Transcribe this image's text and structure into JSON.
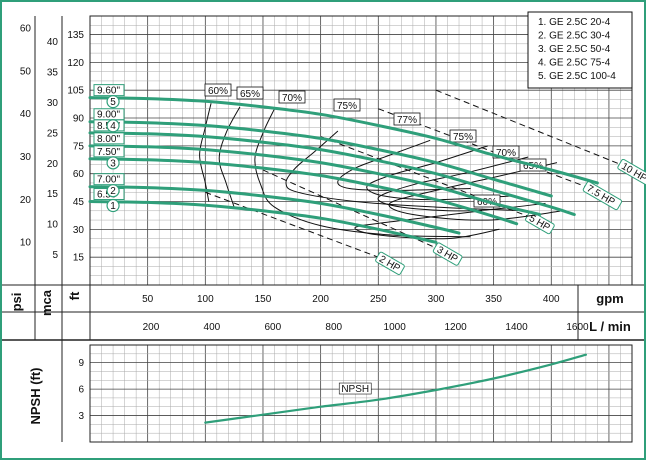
{
  "chart_data": [
    {
      "type": "line",
      "title": "",
      "legend": {
        "placement": "top-right",
        "items": [
          "1. GE 2.5C 20-4",
          "2. GE 2.5C 30-4",
          "3. GE 2.5C 50-4",
          "4. GE 2.5C 75-4",
          "5. GE 2.5C 100-4"
        ]
      },
      "axes": {
        "x_top": {
          "label": "gpm",
          "ticks": [
            50,
            100,
            150,
            200,
            250,
            300,
            350,
            400
          ],
          "range": [
            0,
            470
          ]
        },
        "x_bottom": {
          "label": "L / min",
          "ticks": [
            200,
            400,
            600,
            800,
            1000,
            1200,
            1400,
            1600
          ],
          "range": [
            0,
            1779
          ]
        },
        "y_ft": {
          "label": "ft",
          "ticks": [
            15,
            30,
            45,
            60,
            75,
            90,
            105,
            120,
            135
          ],
          "range": [
            0,
            145
          ]
        },
        "y_mca": {
          "label": "mca",
          "ticks": [
            5,
            10,
            15,
            20,
            25,
            30,
            35,
            40
          ],
          "range": [
            0,
            44.2
          ]
        },
        "y_psi": {
          "label": "psi",
          "ticks": [
            10,
            20,
            30,
            40,
            50,
            60
          ],
          "range": [
            0,
            62.8
          ]
        }
      },
      "grid": true,
      "series": [
        {
          "name": "1",
          "diameter": "6.50\"",
          "x": [
            0,
            50,
            100,
            150,
            200,
            250,
            300
          ],
          "y": [
            45,
            44.5,
            43,
            40,
            36,
            30,
            23
          ]
        },
        {
          "name": "2",
          "diameter": "7.00\"",
          "x": [
            0,
            50,
            100,
            150,
            200,
            250,
            300,
            320
          ],
          "y": [
            53,
            52.5,
            51,
            48,
            44,
            38,
            31,
            28
          ]
        },
        {
          "name": "3",
          "diameter": "7.50\"",
          "x": [
            0,
            50,
            100,
            150,
            200,
            250,
            300,
            350,
            370
          ],
          "y": [
            68,
            67.5,
            66,
            63,
            59,
            53,
            46,
            37,
            33
          ]
        },
        {
          "name": "4",
          "diameter": "9.00\"",
          "x": [
            0,
            50,
            100,
            150,
            200,
            250,
            300,
            350,
            400
          ],
          "y": [
            88,
            87.5,
            86,
            83,
            79,
            73,
            66,
            57,
            48
          ]
        },
        {
          "name": "5",
          "diameter": "9.60\"",
          "x": [
            0,
            50,
            100,
            150,
            200,
            250,
            300,
            350,
            400,
            440
          ],
          "y": [
            101,
            100.5,
            99,
            96,
            92,
            86,
            79,
            70,
            62,
            55
          ]
        }
      ],
      "unlabelled_curves": [
        {
          "diameter": "8.00\"",
          "x": [
            0,
            50,
            100,
            150,
            200,
            250,
            300,
            350,
            390
          ],
          "y": [
            75,
            74.5,
            73,
            70,
            66,
            60,
            53,
            44,
            38
          ]
        },
        {
          "diameter": "8.50\"",
          "x": [
            0,
            50,
            100,
            150,
            200,
            250,
            300,
            350,
            400,
            420
          ],
          "y": [
            82,
            81.5,
            80,
            77,
            73,
            67,
            60,
            51,
            42,
            38
          ]
        }
      ],
      "power_lines": [
        {
          "label": "2 HP",
          "x": [
            100,
            250
          ],
          "y": [
            50,
            15
          ]
        },
        {
          "label": "3 HP",
          "x": [
            150,
            300
          ],
          "y": [
            62,
            20
          ]
        },
        {
          "label": "5 HP",
          "x": [
            200,
            380
          ],
          "y": [
            80,
            37
          ]
        },
        {
          "label": "7.5 HP",
          "x": [
            250,
            430
          ],
          "y": [
            95,
            53
          ]
        },
        {
          "label": "10 HP",
          "x": [
            300,
            460
          ],
          "y": [
            105,
            65
          ]
        }
      ],
      "efficiency_labels": [
        "60%",
        "65%",
        "70%",
        "75%",
        "77%",
        "75%",
        "70%",
        "65%",
        "60%"
      ],
      "efficiency_curves": [
        {
          "label": "60%",
          "x": [
            105,
            100,
            95,
            100,
            103
          ],
          "y": [
            98,
            85,
            70,
            55,
            45
          ]
        },
        {
          "label": "65%",
          "x": [
            130,
            118,
            112,
            118,
            125
          ],
          "y": [
            96,
            82,
            68,
            55,
            42
          ]
        },
        {
          "label": "70%",
          "x": [
            160,
            150,
            143,
            148,
            160,
            200,
            260,
            330
          ],
          "y": [
            95,
            82,
            68,
            54,
            42,
            32,
            27,
            26
          ]
        },
        {
          "label": "75%",
          "x": [
            215,
            195,
            178,
            170,
            180,
            230,
            300,
            380
          ],
          "y": [
            83,
            72,
            63,
            55,
            50,
            45,
            42,
            40
          ]
        },
        {
          "label": "77%",
          "x": [
            295,
            260,
            230,
            215,
            225,
            265,
            330
          ],
          "y": [
            78,
            70,
            63,
            56,
            52,
            51,
            52
          ]
        },
        {
          "label": "75%",
          "x": [
            345,
            300,
            260,
            240,
            255,
            300,
            365
          ],
          "y": [
            75,
            66,
            59,
            53,
            48,
            46,
            48
          ]
        },
        {
          "label": "70%",
          "x": [
            380,
            330,
            280,
            250,
            270,
            330,
            395
          ],
          "y": [
            69,
            61,
            54,
            47,
            42,
            40,
            44
          ]
        },
        {
          "label": "65%",
          "x": [
            405,
            350,
            300,
            260,
            280,
            345,
            410
          ],
          "y": [
            66,
            58,
            51,
            44,
            38,
            35,
            40
          ]
        },
        {
          "label": "60%",
          "x": [
            340,
            300,
            260,
            230,
            250,
            310,
            355
          ],
          "y": [
            40,
            37,
            34,
            31,
            27,
            25,
            30
          ]
        }
      ]
    },
    {
      "type": "line",
      "title": "",
      "axes": {
        "x": {
          "label": "gpm",
          "range": [
            0,
            470
          ]
        },
        "y": {
          "label": "NPSH (ft)",
          "ticks": [
            3,
            6,
            9
          ],
          "range": [
            0,
            11
          ]
        }
      },
      "grid": true,
      "series": [
        {
          "name": "NPSH",
          "x": [
            100,
            150,
            200,
            250,
            300,
            350,
            400,
            430
          ],
          "y": [
            2.2,
            3.1,
            4.0,
            4.8,
            5.9,
            7.2,
            8.8,
            9.9
          ]
        }
      ]
    }
  ]
}
